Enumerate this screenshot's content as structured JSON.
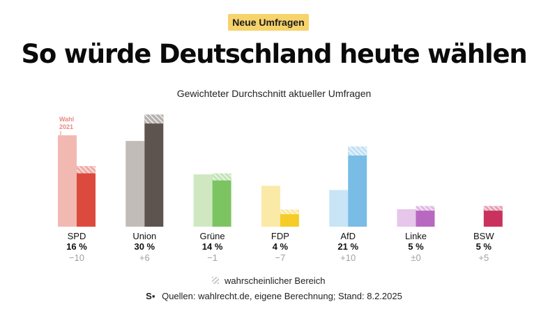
{
  "header": {
    "badge": "Neue Umfragen",
    "title": "So würde Deutschland heute wählen"
  },
  "chart_data": {
    "type": "bar",
    "title": "Gewichteter Durchschnitt aktueller Umfragen",
    "election_label_line1": "Wahl",
    "election_label_line2": "2021",
    "ylim": [
      0,
      36
    ],
    "parties": [
      {
        "name": "SPD",
        "value_label": "16 %",
        "change_label": "−10",
        "poll": 16,
        "election": 25.7,
        "range_low": 15.0,
        "range_high": 17.0,
        "color": "#dc4a3d",
        "light": "#f2b9b2"
      },
      {
        "name": "Union",
        "value_label": "30 %",
        "change_label": "+6",
        "poll": 30,
        "election": 24.1,
        "range_low": 29.0,
        "range_high": 31.5,
        "color": "#5e544f",
        "light": "#c2bcb8"
      },
      {
        "name": "Grüne",
        "value_label": "14 %",
        "change_label": "−1",
        "poll": 14,
        "election": 14.7,
        "range_low": 13.0,
        "range_high": 15.0,
        "color": "#7cc462",
        "light": "#cfe8c1"
      },
      {
        "name": "FDP",
        "value_label": "4 %",
        "change_label": "−7",
        "poll": 4,
        "election": 11.5,
        "range_low": 3.5,
        "range_high": 4.8,
        "color": "#f5cc28",
        "light": "#fbe9a8"
      },
      {
        "name": "AfD",
        "value_label": "21 %",
        "change_label": "+10",
        "poll": 21,
        "election": 10.3,
        "range_low": 20.0,
        "range_high": 22.5,
        "color": "#79bce6",
        "light": "#c8e4f6"
      },
      {
        "name": "Linke",
        "value_label": "5 %",
        "change_label": "±0",
        "poll": 5,
        "election": 4.9,
        "range_low": 4.5,
        "range_high": 5.8,
        "color": "#b868c0",
        "light": "#e6c6ea"
      },
      {
        "name": "BSW",
        "value_label": "5 %",
        "change_label": "+5",
        "poll": 5,
        "election": 0,
        "range_low": 4.5,
        "range_high": 5.8,
        "color": "#c8325c",
        "light": "#eab7c5"
      }
    ]
  },
  "legend": {
    "label": "wahrscheinlicher Bereich"
  },
  "footer": {
    "logo": "S▪",
    "source": "Quellen: wahlrecht.de, eigene Berechnung; Stand: 8.2.2025"
  }
}
